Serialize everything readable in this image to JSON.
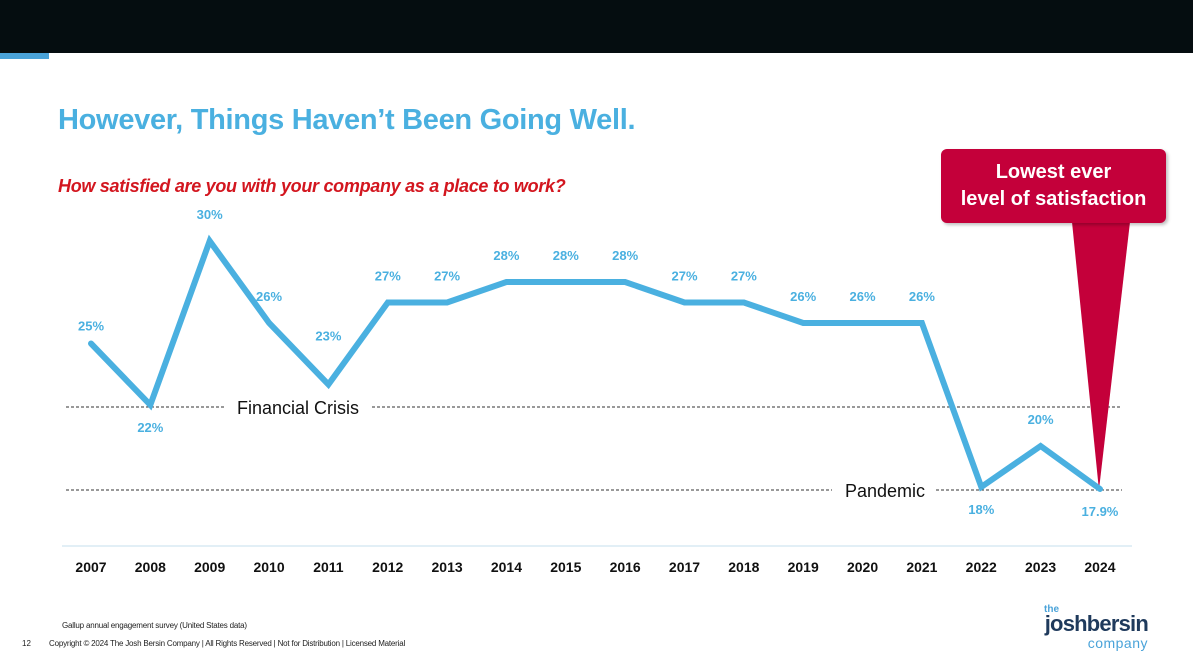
{
  "slide": {
    "title": "However, Things Haven’t Been Going Well.",
    "subtitle": "How satisfied are you with your company as a place to work?",
    "callout_line1": "Lowest ever",
    "callout_line2": "level of satisfaction",
    "source": "Gallup annual engagement survey (United States data)",
    "page_number": "12",
    "copyright": "Copyright © 2024 The Josh Bersin Company | All Rights Reserved | Not for Distribution | Licensed Material",
    "logo_the": "the",
    "logo_main": "joshbersin",
    "logo_company": "company"
  },
  "colors": {
    "line": "#4ab0e0",
    "title": "#4ab0e0",
    "subtitle": "#d3161f",
    "callout": "#c4003a",
    "topbar": "#050d10"
  },
  "chart_data": {
    "type": "line",
    "title": "How satisfied are you with your company as a place to work?",
    "categories": [
      "2007",
      "2008",
      "2009",
      "2010",
      "2011",
      "2012",
      "2013",
      "2014",
      "2015",
      "2016",
      "2017",
      "2018",
      "2019",
      "2020",
      "2021",
      "2022",
      "2023",
      "2024"
    ],
    "values": [
      25,
      22,
      30,
      26,
      23,
      27,
      27,
      28,
      28,
      28,
      27,
      27,
      26,
      26,
      26,
      18,
      20,
      17.9
    ],
    "labels": [
      "25%",
      "22%",
      "30%",
      "26%",
      "23%",
      "27%",
      "27%",
      "28%",
      "28%",
      "28%",
      "27%",
      "27%",
      "26%",
      "26%",
      "26%",
      "18%",
      "20%",
      "17.9%"
    ],
    "ylim": [
      17.9,
      30
    ],
    "xlabel": "",
    "ylabel": "",
    "annotations": [
      {
        "text": "Financial Crisis",
        "y_value": 22
      },
      {
        "text": "Pandemic",
        "y_value": 17.9
      }
    ]
  }
}
